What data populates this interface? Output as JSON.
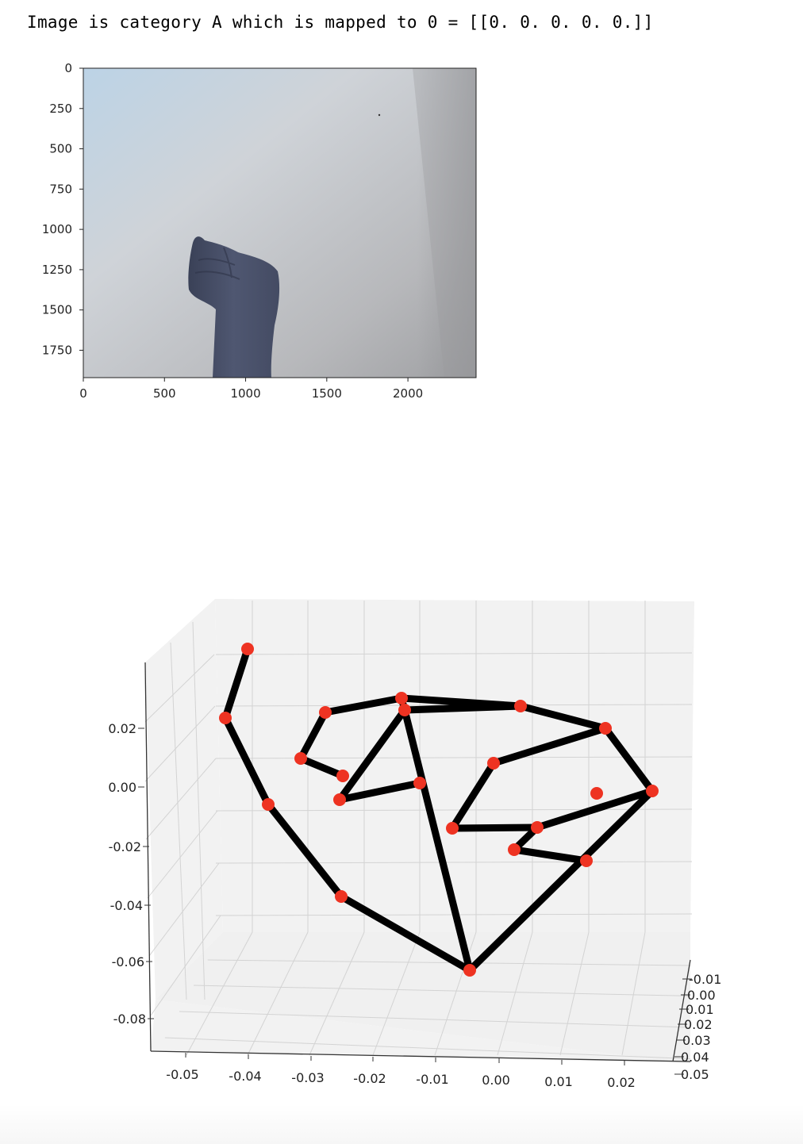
{
  "output_caption": "Image is category A which is mapped to 0 = [[0. 0. 0. 0. 0.]]",
  "chart_data": [
    {
      "type": "image",
      "image_subject": "raised fist (sign A) against a light grey wall",
      "xlim": [
        0,
        2420
      ],
      "ylim": [
        1920,
        0
      ],
      "xticks": [
        0,
        500,
        1000,
        1500,
        2000
      ],
      "yticks": [
        0,
        250,
        500,
        750,
        1000,
        1250,
        1500,
        1750
      ]
    },
    {
      "type": "scatter3d",
      "marker_color": "#ee3322",
      "line_color": "#000000",
      "grid": true,
      "xticks": [
        "-0.05",
        "-0.04",
        "-0.03",
        "-0.02",
        "-0.01",
        "0.00",
        "0.01",
        "0.02"
      ],
      "yticks": [
        "-0.01",
        "0.00",
        "0.01",
        "0.02",
        "0.03",
        "0.04",
        "0.05"
      ],
      "zticks": [
        "0.02",
        "0.00",
        "-0.02",
        "-0.04",
        "-0.06",
        "-0.08"
      ],
      "landmarks": [
        {
          "name": "wrist",
          "x": -0.004,
          "y": 0.03,
          "z": -0.065
        },
        {
          "name": "thumb_cmc",
          "x": -0.029,
          "y": 0.025,
          "z": -0.043
        },
        {
          "name": "thumb_mcp",
          "x": -0.041,
          "y": 0.02,
          "z": -0.017
        },
        {
          "name": "thumb_ip",
          "x": -0.048,
          "y": 0.015,
          "z": 0.01
        },
        {
          "name": "thumb_tip",
          "x": -0.045,
          "y": 0.01,
          "z": 0.031
        },
        {
          "name": "index_mcp",
          "x": -0.015,
          "y": 0.02,
          "z": 0.025
        },
        {
          "name": "index_pip",
          "x": -0.032,
          "y": 0.01,
          "z": 0.022
        },
        {
          "name": "index_dip",
          "x": -0.032,
          "y": 0.02,
          "z": -0.005
        },
        {
          "name": "index_tip",
          "x": -0.019,
          "y": 0.02,
          "z": 0.0
        },
        {
          "name": "middle_mcp",
          "x": -0.014,
          "y": 0.025,
          "z": 0.02
        },
        {
          "name": "middle_pip",
          "x": -0.026,
          "y": 0.01,
          "z": 0.023
        },
        {
          "name": "middle_dip",
          "x": -0.037,
          "y": 0.015,
          "z": 0.004
        },
        {
          "name": "middle_tip",
          "x": -0.032,
          "y": 0.02,
          "z": 0.001
        },
        {
          "name": "ring_mcp",
          "x": 0.004,
          "y": 0.03,
          "z": 0.02
        },
        {
          "name": "ring_pip",
          "x": 0.02,
          "y": 0.03,
          "z": 0.008
        },
        {
          "name": "ring_dip",
          "x": -0.001,
          "y": 0.025,
          "z": 0.0
        },
        {
          "name": "ring_tip",
          "x": -0.007,
          "y": 0.025,
          "z": -0.017
        },
        {
          "name": "pinky_mcp",
          "x": 0.025,
          "y": 0.03,
          "z": -0.001
        },
        {
          "name": "pinky_pip",
          "x": 0.015,
          "y": 0.03,
          "z": -0.004
        },
        {
          "name": "pinky_dip",
          "x": 0.006,
          "y": 0.03,
          "z": -0.017
        },
        {
          "name": "pinky_tip",
          "x": 0.002,
          "y": 0.03,
          "z": -0.021
        }
      ]
    }
  ]
}
